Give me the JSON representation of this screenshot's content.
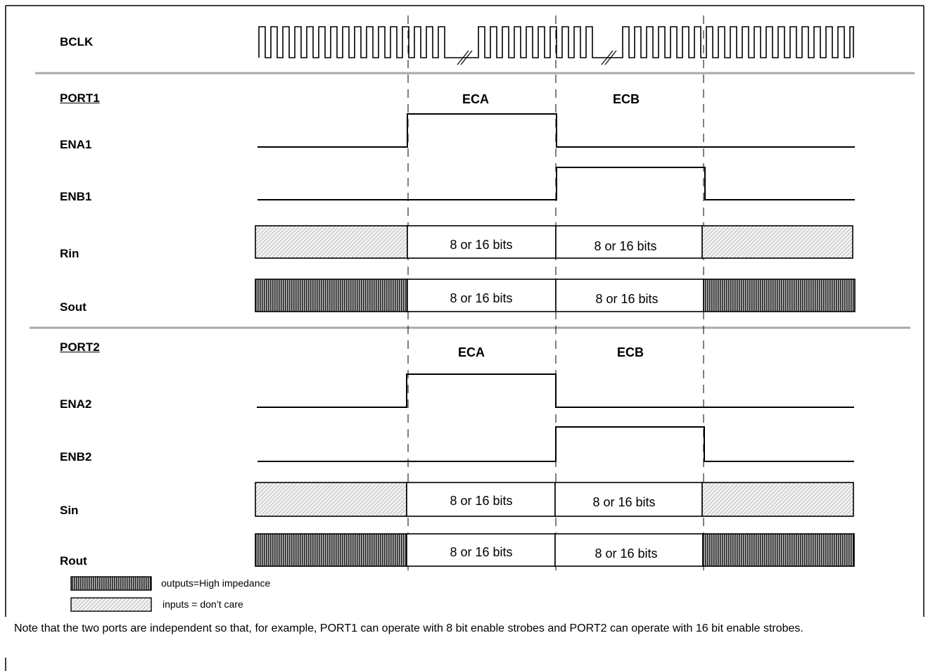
{
  "signals": {
    "bclk": "BCLK",
    "port1": "PORT1",
    "ena1": "ENA1",
    "enb1": "ENB1",
    "rin": "Rin",
    "sout": "Sout",
    "port2": "PORT2",
    "ena2": "ENA2",
    "enb2": "ENB2",
    "sin": "Sin",
    "rout": "Rout"
  },
  "channels": {
    "eca": "ECA",
    "ecb": "ECB"
  },
  "bits_label": "8 or 16 bits",
  "legend": {
    "high_impedance": "outputs=High impedance",
    "dont_care": "inputs = don’t care"
  },
  "note": "Note that the two ports are independent so that, for example, PORT1 can operate with 8 bit enable strobes and PORT2 can operate with 16 bit enable strobes."
}
